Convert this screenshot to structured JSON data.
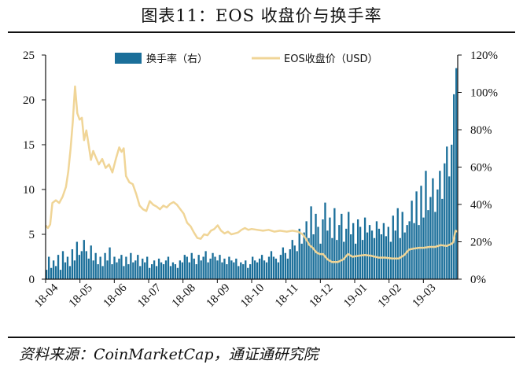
{
  "header": {
    "title": "图表11：EOS 收盘价与换手率",
    "source": "资料来源：CoinMarketCap，通证通研究院"
  },
  "chart_data": {
    "type": "bar+line",
    "title": "图表11：EOS 收盘价与换手率",
    "x_ticks": [
      "18-04",
      "18-05",
      "18-06",
      "18-07",
      "18-08",
      "18-09",
      "18-10",
      "18-11",
      "18-12",
      "19-01",
      "19-02",
      "19-03"
    ],
    "x_start": "2018-04-01",
    "x_end": "2019-03-31",
    "y_left": {
      "min": 0,
      "max": 25,
      "ticks": [
        "0",
        "5",
        "10",
        "15",
        "20",
        "25"
      ]
    },
    "y_right": {
      "min": 0,
      "max": 120,
      "ticks": [
        "0%",
        "20%",
        "40%",
        "60%",
        "80%",
        "100%",
        "120%"
      ]
    },
    "legend": {
      "placement": "top",
      "turnover": "换手率（右）",
      "price": "EOS收盘价（USD）"
    },
    "colors": {
      "turnover": "#1b6f9a",
      "price": "#f0d597"
    },
    "series": [
      {
        "name": "EOS收盘价（USD）",
        "axis": "left",
        "type": "line",
        "points": [
          [
            "2018-04-01",
            6.0
          ],
          [
            "2018-04-03",
            5.7
          ],
          [
            "2018-04-05",
            6.1
          ],
          [
            "2018-04-07",
            8.5
          ],
          [
            "2018-04-10",
            8.8
          ],
          [
            "2018-04-13",
            8.5
          ],
          [
            "2018-04-16",
            9.2
          ],
          [
            "2018-04-19",
            10.3
          ],
          [
            "2018-04-21",
            12.0
          ],
          [
            "2018-04-23",
            14.5
          ],
          [
            "2018-04-25",
            17.5
          ],
          [
            "2018-04-27",
            21.5
          ],
          [
            "2018-04-29",
            18.5
          ],
          [
            "2018-05-01",
            17.8
          ],
          [
            "2018-05-03",
            18.0
          ],
          [
            "2018-05-05",
            15.5
          ],
          [
            "2018-05-07",
            16.6
          ],
          [
            "2018-05-09",
            15.0
          ],
          [
            "2018-05-11",
            13.3
          ],
          [
            "2018-05-13",
            14.3
          ],
          [
            "2018-05-15",
            13.7
          ],
          [
            "2018-05-18",
            12.8
          ],
          [
            "2018-05-21",
            13.4
          ],
          [
            "2018-05-24",
            12.4
          ],
          [
            "2018-05-27",
            12.8
          ],
          [
            "2018-05-30",
            11.9
          ],
          [
            "2018-06-02",
            13.4
          ],
          [
            "2018-06-05",
            14.7
          ],
          [
            "2018-06-07",
            14.2
          ],
          [
            "2018-06-09",
            14.6
          ],
          [
            "2018-06-11",
            11.5
          ],
          [
            "2018-06-14",
            10.8
          ],
          [
            "2018-06-17",
            10.6
          ],
          [
            "2018-06-20",
            9.5
          ],
          [
            "2018-06-23",
            8.2
          ],
          [
            "2018-06-26",
            7.8
          ],
          [
            "2018-06-29",
            7.6
          ],
          [
            "2018-07-02",
            8.7
          ],
          [
            "2018-07-05",
            8.3
          ],
          [
            "2018-07-08",
            8.1
          ],
          [
            "2018-07-11",
            7.8
          ],
          [
            "2018-07-14",
            8.2
          ],
          [
            "2018-07-17",
            8.0
          ],
          [
            "2018-07-20",
            8.4
          ],
          [
            "2018-07-23",
            8.6
          ],
          [
            "2018-07-26",
            8.3
          ],
          [
            "2018-07-29",
            7.8
          ],
          [
            "2018-08-01",
            7.3
          ],
          [
            "2018-08-04",
            6.3
          ],
          [
            "2018-08-07",
            5.9
          ],
          [
            "2018-08-10",
            5.2
          ],
          [
            "2018-08-13",
            4.6
          ],
          [
            "2018-08-16",
            4.5
          ],
          [
            "2018-08-19",
            5.0
          ],
          [
            "2018-08-22",
            4.9
          ],
          [
            "2018-08-25",
            5.4
          ],
          [
            "2018-08-28",
            5.6
          ],
          [
            "2018-08-31",
            6.0
          ],
          [
            "2018-09-03",
            5.4
          ],
          [
            "2018-09-06",
            5.1
          ],
          [
            "2018-09-09",
            5.3
          ],
          [
            "2018-09-12",
            5.0
          ],
          [
            "2018-09-15",
            5.1
          ],
          [
            "2018-09-18",
            5.2
          ],
          [
            "2018-09-21",
            5.5
          ],
          [
            "2018-09-24",
            5.7
          ],
          [
            "2018-09-27",
            5.5
          ],
          [
            "2018-09-30",
            5.6
          ],
          [
            "2018-10-05",
            5.5
          ],
          [
            "2018-10-10",
            5.4
          ],
          [
            "2018-10-15",
            5.5
          ],
          [
            "2018-10-20",
            5.3
          ],
          [
            "2018-10-25",
            5.4
          ],
          [
            "2018-10-31",
            5.3
          ],
          [
            "2018-11-05",
            5.4
          ],
          [
            "2018-11-10",
            5.3
          ],
          [
            "2018-11-14",
            5.0
          ],
          [
            "2018-11-17",
            4.5
          ],
          [
            "2018-11-20",
            3.8
          ],
          [
            "2018-11-23",
            3.5
          ],
          [
            "2018-11-26",
            3.0
          ],
          [
            "2018-11-29",
            2.8
          ],
          [
            "2018-12-02",
            2.8
          ],
          [
            "2018-12-06",
            2.2
          ],
          [
            "2018-12-10",
            1.9
          ],
          [
            "2018-12-15",
            1.9
          ],
          [
            "2018-12-20",
            2.2
          ],
          [
            "2018-12-24",
            2.8
          ],
          [
            "2018-12-28",
            2.5
          ],
          [
            "2019-01-02",
            2.6
          ],
          [
            "2019-01-08",
            2.7
          ],
          [
            "2019-01-14",
            2.6
          ],
          [
            "2019-01-20",
            2.4
          ],
          [
            "2019-01-26",
            2.4
          ],
          [
            "2019-02-01",
            2.3
          ],
          [
            "2019-02-07",
            2.3
          ],
          [
            "2019-02-12",
            2.7
          ],
          [
            "2019-02-16",
            3.3
          ],
          [
            "2019-02-20",
            3.4
          ],
          [
            "2019-02-25",
            3.5
          ],
          [
            "2019-03-01",
            3.5
          ],
          [
            "2019-03-06",
            3.6
          ],
          [
            "2019-03-11",
            3.6
          ],
          [
            "2019-03-16",
            3.8
          ],
          [
            "2019-03-21",
            3.7
          ],
          [
            "2019-03-25",
            3.9
          ],
          [
            "2019-03-27",
            4.1
          ],
          [
            "2019-03-29",
            5.4
          ],
          [
            "2019-03-31",
            5.3
          ]
        ]
      },
      {
        "name": "换手率（右）",
        "axis": "right",
        "type": "bar",
        "bar_spacing_days": 2,
        "values": [
          5,
          12,
          6,
          10,
          7,
          13,
          5,
          15,
          9,
          12,
          7,
          16,
          10,
          20,
          13,
          15,
          21,
          15,
          11,
          18,
          10,
          14,
          8,
          12,
          7,
          14,
          10,
          17,
          8,
          12,
          9,
          11,
          13,
          7,
          12,
          8,
          14,
          9,
          10,
          13,
          7,
          11,
          9,
          12,
          6,
          8,
          10,
          7,
          11,
          9,
          8,
          10,
          12,
          7,
          9,
          8,
          6,
          10,
          9,
          13,
          12,
          9,
          14,
          11,
          8,
          13,
          10,
          12,
          15,
          9,
          11,
          14,
          12,
          10,
          13,
          9,
          11,
          8,
          12,
          10,
          9,
          11,
          7,
          9,
          8,
          10,
          6,
          8,
          12,
          10,
          9,
          11,
          13,
          10,
          9,
          12,
          15,
          12,
          11,
          9,
          13,
          17,
          14,
          11,
          16,
          21,
          18,
          15,
          27,
          19,
          25,
          31,
          22,
          39,
          24,
          35,
          28,
          19,
          32,
          41,
          26,
          33,
          22,
          38,
          21,
          29,
          35,
          20,
          27,
          36,
          24,
          30,
          19,
          32,
          28,
          21,
          33,
          25,
          29,
          26,
          22,
          31,
          27,
          24,
          30,
          23,
          28,
          20,
          34,
          26,
          38,
          22,
          36,
          25,
          29,
          31,
          42,
          30,
          47,
          29,
          50,
          33,
          58,
          37,
          44,
          54,
          36,
          48,
          58,
          43,
          62,
          71,
          55,
          72,
          99,
          113
        ]
      }
    ]
  }
}
